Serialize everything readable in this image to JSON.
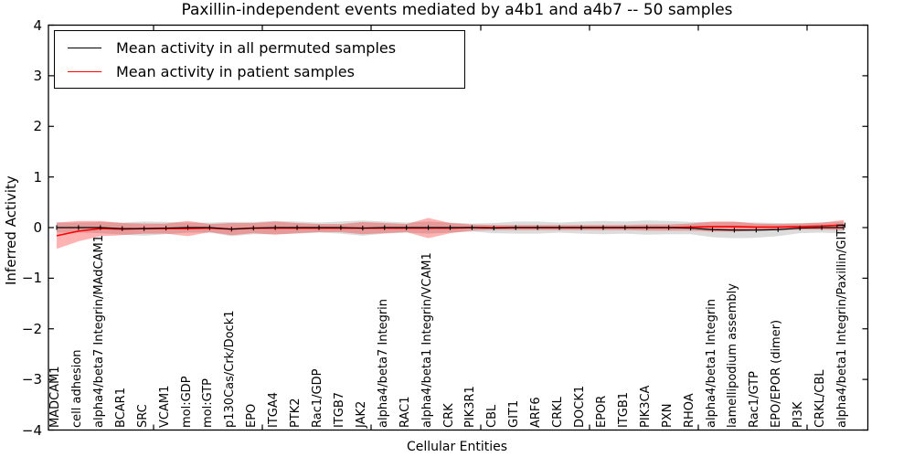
{
  "chart_data": {
    "type": "line",
    "title": "Paxillin-independent events mediated by a4b1 and a4b7 -- 50 samples",
    "xlabel": "Cellular Entities",
    "ylabel": "Inferred Activity",
    "ylim": [
      -4,
      4
    ],
    "yticks": [
      4,
      3,
      2,
      1,
      0,
      -1,
      -2,
      -3,
      -4
    ],
    "grid": false,
    "legend_position": "upper left",
    "categories": [
      "MADCAM1",
      "cell adhesion",
      "alpha4/beta7 Integrin/MAdCAM1",
      "BCAR1",
      "SRC",
      "VCAM1",
      "mol:GDP",
      "mol:GTP",
      "p130Cas/Crk/Dock1",
      "EPO",
      "ITGA4",
      "PTK2",
      "Rac1/GDP",
      "ITGB7",
      "JAK2",
      "alpha4/beta7 Integrin",
      "RAC1",
      "alpha4/beta1 Integrin/VCAM1",
      "CRK",
      "PIK3R1",
      "CBL",
      "GIT1",
      "ARF6",
      "CRKL",
      "DOCK1",
      "EPOR",
      "ITGB1",
      "PIK3CA",
      "PXN",
      "RHOA",
      "alpha4/beta1 Integrin",
      "lamellipodium assembly",
      "Rac1/GTP",
      "EPO/EPOR (dimer)",
      "PI3K",
      "CRKL/CBL",
      "alpha4/beta1 Integrin/Paxillin/GIT1"
    ],
    "series": [
      {
        "name": "Mean activity in all permuted samples",
        "color": "#000000",
        "band_color": "rgba(130,130,130,0.28)",
        "line_width": 1.2,
        "values": [
          0,
          0,
          0,
          -0.02,
          -0.02,
          -0.01,
          0,
          0,
          -0.03,
          -0.01,
          0,
          0,
          0,
          0,
          -0.01,
          0,
          0,
          0,
          0,
          0,
          -0.01,
          0,
          0,
          0,
          0,
          0,
          0,
          0,
          0,
          -0.01,
          -0.04,
          -0.05,
          -0.05,
          -0.04,
          -0.01,
          0,
          0
        ],
        "std": [
          0.1,
          0.1,
          0.11,
          0.12,
          0.14,
          0.12,
          0.1,
          0.1,
          0.14,
          0.12,
          0.13,
          0.12,
          0.1,
          0.12,
          0.15,
          0.12,
          0.1,
          0.12,
          0.1,
          0.08,
          0.1,
          0.12,
          0.12,
          0.1,
          0.12,
          0.13,
          0.12,
          0.14,
          0.13,
          0.12,
          0.15,
          0.16,
          0.15,
          0.13,
          0.1,
          0.1,
          0.12
        ]
      },
      {
        "name": "Mean activity in patient samples",
        "color": "#ff0000",
        "band_color": "rgba(255,0,0,0.30)",
        "line_width": 1.6,
        "values": [
          -0.16,
          -0.07,
          -0.02,
          -0.03,
          -0.02,
          -0.02,
          -0.02,
          -0.01,
          -0.03,
          -0.01,
          -0.01,
          -0.01,
          -0.01,
          -0.01,
          -0.01,
          -0.01,
          -0.01,
          -0.01,
          -0.01,
          0,
          0,
          0,
          0,
          0,
          0,
          0,
          0,
          0,
          0,
          0.01,
          0.02,
          0.02,
          0.01,
          0.01,
          0.02,
          0.03,
          0.05
        ],
        "std": [
          0.26,
          0.2,
          0.15,
          0.12,
          0.1,
          0.1,
          0.15,
          0.08,
          0.12,
          0.1,
          0.13,
          0.1,
          0.08,
          0.08,
          0.12,
          0.1,
          0.08,
          0.2,
          0.1,
          0.06,
          0.05,
          0.05,
          0.05,
          0.05,
          0.05,
          0.05,
          0.05,
          0.06,
          0.06,
          0.07,
          0.1,
          0.1,
          0.07,
          0.06,
          0.06,
          0.07,
          0.1
        ]
      }
    ],
    "axis_color": "#000000",
    "background_color": "#ffffff"
  }
}
